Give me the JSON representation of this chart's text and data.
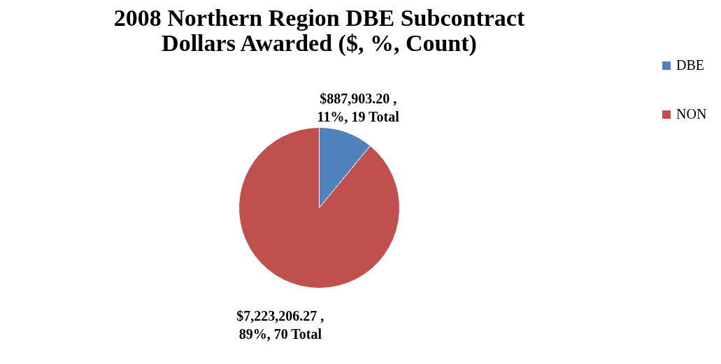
{
  "chart_data": {
    "type": "pie",
    "title": "2008 Northern Region DBE Subcontract Dollars Awarded ($, %, Count)",
    "categories": [
      "DBE",
      "NON"
    ],
    "values": [
      887903.2,
      7223206.27
    ],
    "colors": [
      "#4f81bd",
      "#c0504d"
    ],
    "value_labels": [
      "$887,903.20 , 11%, 19 Total",
      "$7,223,206.27 , 89%, 70 Total"
    ],
    "legend": "right"
  }
}
